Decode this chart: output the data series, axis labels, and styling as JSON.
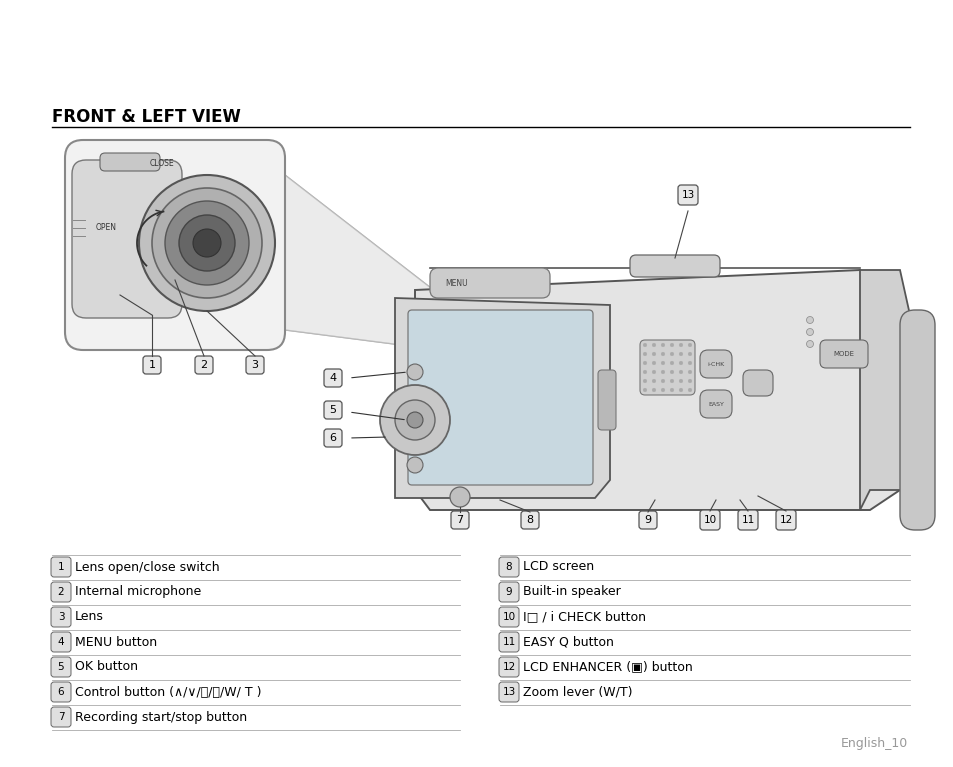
{
  "title": "FRONT & LEFT VIEW",
  "bg_color": "#ffffff",
  "title_color": "#000000",
  "title_fontsize": 12,
  "page_label": "English_10",
  "left_items": [
    {
      "num": "1",
      "text": "Lens open/close switch"
    },
    {
      "num": "2",
      "text": "Internal microphone"
    },
    {
      "num": "3",
      "text": "Lens"
    },
    {
      "num": "4",
      "text": "MENU button"
    },
    {
      "num": "5",
      "text": "OK button"
    },
    {
      "num": "6",
      "text": "Control button (∧/∨/〈/〉/W/ T )"
    },
    {
      "num": "7",
      "text": "Recording start/stop button"
    }
  ],
  "right_items": [
    {
      "num": "8",
      "text": "LCD screen"
    },
    {
      "num": "9",
      "text": "Built-in speaker"
    },
    {
      "num": "10",
      "text": "I□ / i CHECK button"
    },
    {
      "num": "11",
      "text": "EASY Q button"
    },
    {
      "num": "12",
      "text": "LCD ENHANCER (▣) button"
    },
    {
      "num": "13",
      "text": "Zoom lever (W/T)"
    }
  ],
  "text_fontsize": 9.0,
  "num_fontsize": 7.5,
  "diagram_bg": "#f8f8f8",
  "camera_fill": "#e0e0e0",
  "camera_edge": "#444444",
  "inset_fill": "#f0f0f0",
  "lens_gray1": "#d8d8d8",
  "lens_gray2": "#aaaaaa",
  "lens_gray3": "#777777",
  "lens_gray4": "#444444"
}
